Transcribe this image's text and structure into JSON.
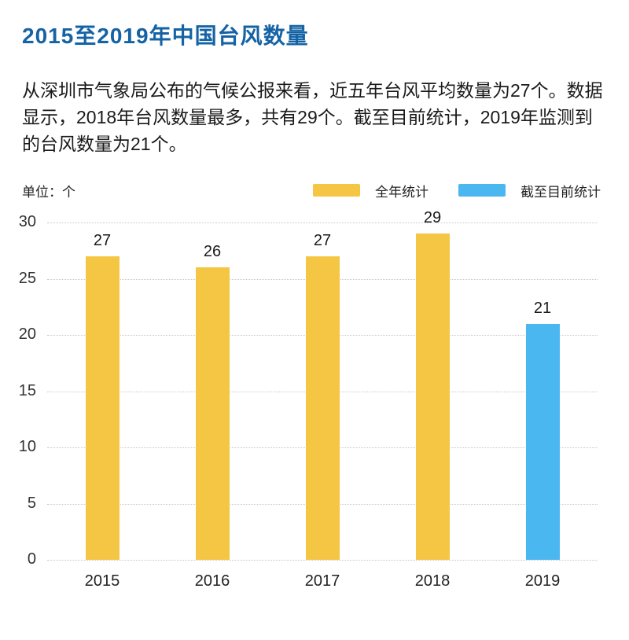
{
  "page": {
    "title": "2015至2019年中国台风数量",
    "description": "从深圳市气象局公布的气候公报来看，近五年台风平均数量为27个。数据显示，2018年台风数量最多，共有29个。截至目前统计，2019年监测到的台风数量为21个。",
    "unit_label": "单位：个"
  },
  "colors": {
    "title_blue": "#1563A5",
    "annual_yellow": "#F5C644",
    "todate_blue": "#4BB7F0",
    "gridline_gray": "#C8C8C8"
  },
  "chart_data": {
    "type": "bar",
    "title": "2015至2019年中国台风数量",
    "categories": [
      "2015",
      "2016",
      "2017",
      "2018",
      "2019"
    ],
    "series": [
      {
        "name": "全年统计",
        "color": "#F5C644",
        "values": [
          27,
          26,
          27,
          29,
          null
        ]
      },
      {
        "name": "截至目前统计",
        "color": "#4BB7F0",
        "values": [
          null,
          null,
          null,
          null,
          21
        ]
      }
    ],
    "xlabel": "",
    "ylabel": "单位：个",
    "ylim": [
      0,
      30
    ],
    "yticks": [
      0,
      5,
      10,
      15,
      20,
      25,
      30
    ],
    "grid": "horizontal-dotted",
    "legend_position": "top-right",
    "bar_value_labels": [
      27,
      26,
      27,
      29,
      21
    ]
  }
}
